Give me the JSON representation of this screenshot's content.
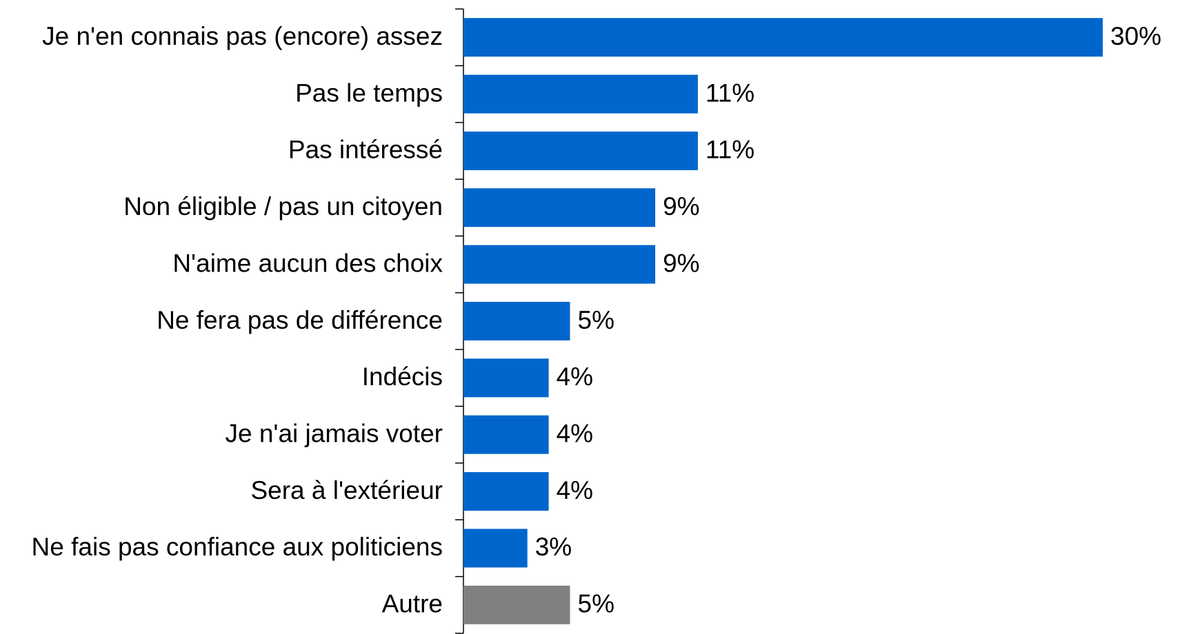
{
  "chart_data": {
    "type": "barh",
    "categories": [
      "Je n'en connais pas (encore) assez",
      "Pas le temps",
      "Pas intéressé",
      "Non éligible / pas un citoyen",
      "N'aime aucun des choix",
      "Ne fera pas de différence",
      "Indécis",
      "Je n'ai jamais voter",
      "Sera à l'extérieur",
      "Ne fais pas confiance aux politiciens",
      "Autre"
    ],
    "values": [
      30,
      11,
      11,
      9,
      9,
      5,
      4,
      4,
      4,
      3,
      5
    ],
    "value_labels": [
      "30%",
      "11%",
      "11%",
      "9%",
      "9%",
      "5%",
      "4%",
      "4%",
      "4%",
      "3%",
      "5%"
    ],
    "colors": [
      "#0066cc",
      "#0066cc",
      "#0066cc",
      "#0066cc",
      "#0066cc",
      "#0066cc",
      "#0066cc",
      "#0066cc",
      "#0066cc",
      "#0066cc",
      "#808080"
    ],
    "xlim": [
      0,
      30
    ]
  }
}
